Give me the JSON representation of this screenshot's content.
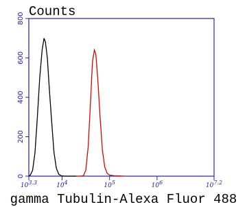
{
  "chart_data": {
    "type": "line",
    "title": "Counts",
    "x_label": "gamma Tubulin-Alexa Fluor 488",
    "xscale": "log",
    "xlim": [
      1995.26,
      15848932
    ],
    "xticks": [
      {
        "value": 1995.26,
        "label": "10^3.3"
      },
      {
        "value": 10000,
        "label": "10^4"
      },
      {
        "value": 100000,
        "label": "10^5"
      },
      {
        "value": 1000000,
        "label": "10^6"
      },
      {
        "value": 15848932,
        "label": "10^7.2"
      }
    ],
    "ylim": [
      0,
      800
    ],
    "yticks": [
      0,
      200,
      400,
      600,
      800
    ],
    "axis_color": "#2020c0",
    "series": [
      {
        "color": "#000000",
        "x": [
          1995,
          2138,
          2399,
          2692,
          3020,
          3388,
          3802,
          4169,
          4467,
          4898,
          5370,
          6026,
          6761,
          7586,
          8511,
          9550,
          11220,
          20000
        ],
        "values": [
          0,
          5,
          30,
          120,
          300,
          500,
          640,
          700,
          680,
          600,
          450,
          280,
          120,
          40,
          10,
          2,
          0,
          0
        ]
      },
      {
        "color": "#e00000",
        "x": [
          20000,
          25119,
          28184,
          31623,
          35481,
          39811,
          43652,
          47863,
          51286,
          56234,
          63096,
          70795,
          79433,
          89125,
          100000,
          125893,
          158489,
          199526
        ],
        "values": [
          0,
          0,
          3,
          30,
          150,
          380,
          580,
          640,
          620,
          500,
          300,
          130,
          45,
          15,
          5,
          2,
          1,
          0
        ]
      }
    ]
  }
}
